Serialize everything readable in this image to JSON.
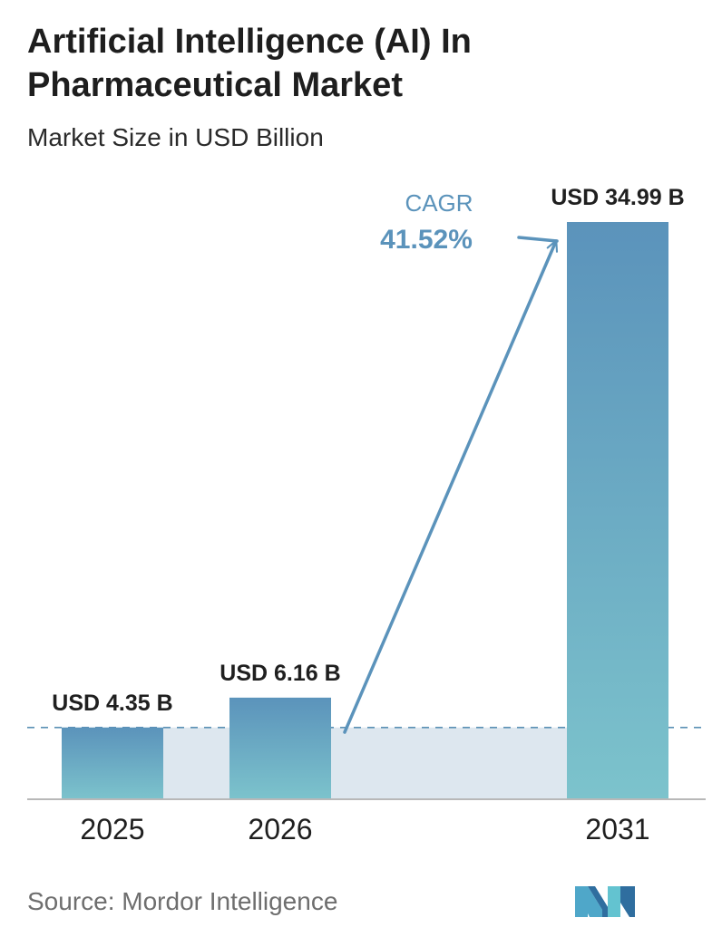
{
  "title": "Artificial Intelligence (AI) In Pharmaceutical Market",
  "subtitle": "Market Size in USD Billion",
  "source": "Source:  Mordor Intelligence",
  "cagr": {
    "label": "CAGR",
    "value": "41.52%"
  },
  "colors": {
    "bar_top": "#5b93bb",
    "bar_bottom": "#7cc3cc",
    "band": "#dde7ef",
    "cagr": "#5b93bb",
    "baseline": "#b8b8b8",
    "dash": "#5a90b4"
  },
  "chart_data": {
    "type": "bar",
    "categories": [
      "2025",
      "2026",
      "2031"
    ],
    "values": [
      4.35,
      6.16,
      34.99
    ],
    "data_labels": [
      "USD 4.35 B",
      "USD 6.16 B",
      "USD 34.99 B"
    ],
    "title": "Artificial Intelligence (AI) In Pharmaceutical Market",
    "subtitle": "Market Size in USD Billion",
    "ylim": [
      0,
      34.99
    ],
    "grid": false,
    "legend": "none"
  }
}
